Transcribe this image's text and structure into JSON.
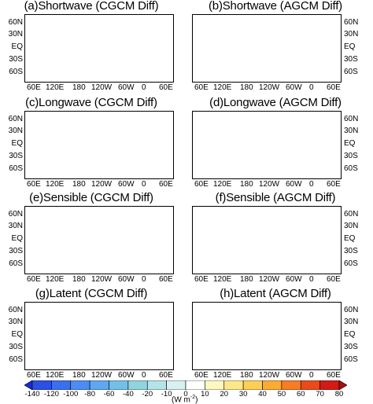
{
  "panels": [
    {
      "id": "a",
      "title": "(a)Shortwave (CGCM Diff)",
      "field": "shortwave"
    },
    {
      "id": "b",
      "title": "(b)Shortwave (AGCM Diff)",
      "field": "shortwave"
    },
    {
      "id": "c",
      "title": "(c)Longwave (CGCM Diff)",
      "field": "longwave"
    },
    {
      "id": "d",
      "title": "(d)Longwave (AGCM Diff)",
      "field": "longwave"
    },
    {
      "id": "e",
      "title": "(e)Sensible (CGCM Diff)",
      "field": "sensible"
    },
    {
      "id": "f",
      "title": "(f)Sensible (AGCM Diff)",
      "field": "sensible"
    },
    {
      "id": "g",
      "title": "(g)Latent (CGCM Diff)",
      "field": "latent"
    },
    {
      "id": "h",
      "title": "(h)Latent (AGCM Diff)",
      "field": "latent"
    }
  ],
  "lat_ticks": [
    "60N",
    "30N",
    "EQ",
    "30S",
    "60S"
  ],
  "lon_ticks": [
    "60E",
    "120E",
    "180",
    "120W",
    "60W",
    "0",
    "60E"
  ],
  "colorbar": {
    "labels": [
      "-140",
      "-120",
      "-100",
      "-80",
      "-60",
      "-40",
      "-20",
      "-10",
      "0",
      "10",
      "20",
      "30",
      "40",
      "50",
      "60",
      "70",
      "80"
    ],
    "colors": [
      "#1a2ad8",
      "#2c4fe6",
      "#3b6ff0",
      "#4b8cf5",
      "#5ea8f2",
      "#74bfe8",
      "#8fd4df",
      "#b4e4e8",
      "#d7f0f0",
      "#ffffff",
      "#fff7c0",
      "#ffe789",
      "#ffcf55",
      "#fdaa32",
      "#f77c22",
      "#ea4a1c",
      "#d31b16",
      "#a80f10"
    ],
    "unit_base": "(W m",
    "unit_exp": "-2",
    "unit_close": ")"
  }
}
